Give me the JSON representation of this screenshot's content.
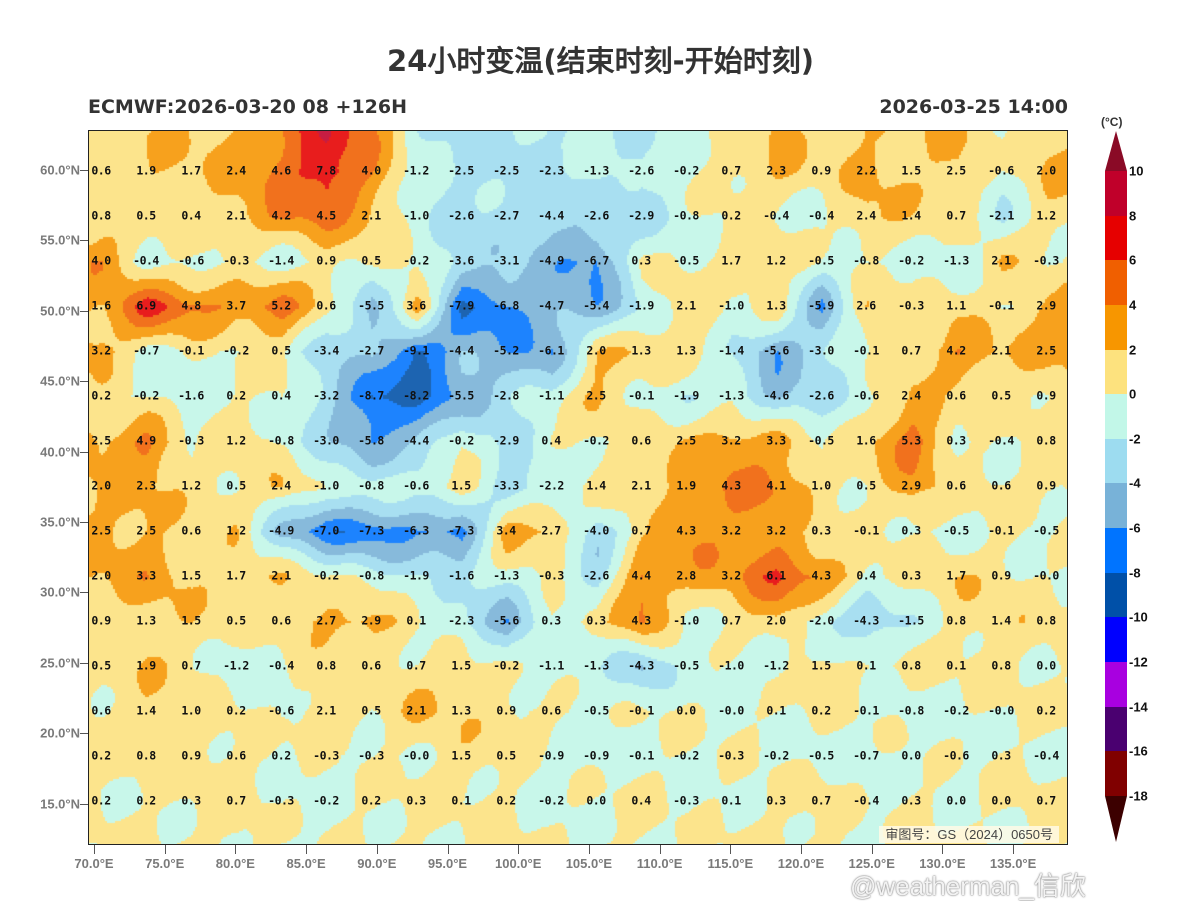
{
  "header": {
    "title": "24小时变温(结束时刻-开始时刻)",
    "model_run": "ECMWF:2026-03-20 08 +126H",
    "valid_time": "2026-03-25 14:00"
  },
  "colorbar": {
    "unit": "(°C)",
    "ticks": [
      "10",
      "8",
      "6",
      "4",
      "2",
      "0",
      "-2",
      "-4",
      "-6",
      "-8",
      "-10",
      "-12",
      "-14",
      "-16",
      "-18"
    ],
    "above_color": "#8a0a26",
    "below_color": "#3c0000",
    "colors": [
      "#c0002a",
      "#e60000",
      "#f05f00",
      "#f79600",
      "#fde27e",
      "#c2f7e8",
      "#9ddcf0",
      "#78b2d8",
      "#0074ff",
      "#0050a8",
      "#0000ff",
      "#a800e0",
      "#4a0070",
      "#800000"
    ]
  },
  "axes": {
    "lat_labels": [
      "60.0°N",
      "55.0°N",
      "50.0°N",
      "45.0°N",
      "40.0°N",
      "35.0°N",
      "30.0°N",
      "25.0°N",
      "20.0°N",
      "15.0°N"
    ],
    "lon_labels": [
      "70.0°E",
      "75.0°E",
      "80.0°E",
      "85.0°E",
      "90.0°E",
      "95.0°E",
      "100.0°E",
      "105.0°E",
      "110.0°E",
      "115.0°E",
      "120.0°E",
      "125.0°E",
      "130.0°E",
      "135.0°E"
    ]
  },
  "map_note": "审图号：GS（2024）0650号",
  "watermark": "@weatherman_信欣",
  "chart_data": {
    "type": "heatmap",
    "title": "24小时变温(结束时刻-开始时刻)",
    "units": "°C",
    "grid_values": [
      [
        "0.6",
        "1.9",
        "1.7",
        "2.4",
        "4.6",
        "7.8",
        "4.0",
        "-1.2",
        "-2.5",
        "-2.5",
        "-2.3",
        "-1.3",
        "-2.6",
        "-0.2",
        "0.7",
        "2.3",
        "0.9",
        "2.2",
        "1.5",
        "2.5",
        "-0.6",
        "2.0"
      ],
      [
        "0.8",
        "0.5",
        "0.4",
        "2.1",
        "4.2",
        "4.5",
        "2.1",
        "-1.0",
        "-2.6",
        "-2.7",
        "-4.4",
        "-2.6",
        "-2.9",
        "-0.8",
        "0.2",
        "-0.4",
        "-0.4",
        "2.4",
        "1.4",
        "0.7",
        "-2.1",
        "1.2"
      ],
      [
        "4.0",
        "-0.4",
        "-0.6",
        "-0.3",
        "-1.4",
        "0.9",
        "0.5",
        "-0.2",
        "-3.6",
        "-3.1",
        "-4.9",
        "-6.7",
        "0.3",
        "-0.5",
        "1.7",
        "1.2",
        "-0.5",
        "-0.8",
        "-0.2",
        "-1.3",
        "2.1",
        "-0.3"
      ],
      [
        "1.6",
        "6.9",
        "4.8",
        "3.7",
        "5.2",
        "0.6",
        "-5.5",
        "3.6",
        "-7.9",
        "-6.8",
        "-4.7",
        "-5.4",
        "-1.9",
        "2.1",
        "-1.0",
        "1.3",
        "-5.9",
        "2.6",
        "-0.3",
        "1.1",
        "-0.1",
        "2.9"
      ],
      [
        "3.2",
        "-0.7",
        "-0.1",
        "-0.2",
        "0.5",
        "-3.4",
        "-2.7",
        "-9.1",
        "-4.4",
        "-5.2",
        "-6.1",
        "2.0",
        "1.3",
        "1.3",
        "-1.4",
        "-5.6",
        "-3.0",
        "-0.1",
        "0.7",
        "4.2",
        "2.1",
        "2.5"
      ],
      [
        "0.2",
        "-0.2",
        "-1.6",
        "0.2",
        "0.4",
        "-3.2",
        "-8.7",
        "-8.2",
        "-5.5",
        "-2.8",
        "-1.1",
        "2.5",
        "-0.1",
        "-1.9",
        "-1.3",
        "-4.6",
        "-2.6",
        "-0.6",
        "2.4",
        "0.6",
        "0.5",
        "0.9"
      ],
      [
        "2.5",
        "4.9",
        "-0.3",
        "1.2",
        "-0.8",
        "-3.0",
        "-5.8",
        "-4.4",
        "-0.2",
        "-2.9",
        "0.4",
        "-0.2",
        "0.6",
        "2.5",
        "3.2",
        "3.3",
        "-0.5",
        "1.6",
        "5.3",
        "0.3",
        "-0.4",
        "0.8"
      ],
      [
        "2.0",
        "2.3",
        "1.2",
        "0.5",
        "2.4",
        "-1.0",
        "-0.8",
        "-0.6",
        "1.5",
        "-3.3",
        "-2.2",
        "1.4",
        "2.1",
        "1.9",
        "4.3",
        "4.1",
        "1.0",
        "0.5",
        "2.9",
        "0.6",
        "0.6",
        "0.9"
      ],
      [
        "2.5",
        "2.5",
        "0.6",
        "1.2",
        "-4.9",
        "-7.0",
        "-7.3",
        "-6.3",
        "-7.3",
        "3.4",
        "2.7",
        "-4.0",
        "0.7",
        "4.3",
        "3.2",
        "3.2",
        "0.3",
        "-0.1",
        "0.3",
        "-0.5",
        "-0.1",
        "-0.5"
      ],
      [
        "2.0",
        "3.3",
        "1.5",
        "1.7",
        "2.1",
        "-0.2",
        "-0.8",
        "-1.9",
        "-1.6",
        "-1.3",
        "-0.3",
        "-2.6",
        "4.4",
        "2.8",
        "3.2",
        "6.1",
        "4.3",
        "0.4",
        "0.3",
        "1.7",
        "0.9",
        "-0.0"
      ],
      [
        "0.9",
        "1.3",
        "1.5",
        "0.5",
        "0.6",
        "2.7",
        "2.9",
        "0.1",
        "-2.3",
        "-5.6",
        "0.3",
        "0.3",
        "4.3",
        "-1.0",
        "0.7",
        "2.0",
        "-2.0",
        "-4.3",
        "-1.5",
        "0.8",
        "1.4",
        "0.8"
      ],
      [
        "0.5",
        "1.9",
        "0.7",
        "-1.2",
        "-0.4",
        "0.8",
        "0.6",
        "0.7",
        "1.5",
        "-0.2",
        "-1.1",
        "-1.3",
        "-4.3",
        "-0.5",
        "-1.0",
        "-1.2",
        "1.5",
        "0.1",
        "0.8",
        "0.1",
        "0.8",
        "0.0"
      ],
      [
        "0.6",
        "1.4",
        "1.0",
        "0.2",
        "-0.6",
        "2.1",
        "0.5",
        "2.1",
        "1.3",
        "0.9",
        "0.6",
        "-0.5",
        "-0.1",
        "0.0",
        "-0.0",
        "0.1",
        "0.2",
        "-0.1",
        "-0.8",
        "-0.2",
        "-0.0",
        "0.2"
      ],
      [
        "0.2",
        "0.8",
        "0.9",
        "0.6",
        "0.2",
        "-0.3",
        "-0.3",
        "-0.0",
        "1.5",
        "0.5",
        "-0.9",
        "-0.9",
        "-0.1",
        "-0.2",
        "-0.3",
        "-0.2",
        "-0.5",
        "-0.7",
        "0.0",
        "-0.6",
        "0.3",
        "-0.4"
      ],
      [
        "0.2",
        "0.2",
        "0.3",
        "0.7",
        "-0.3",
        "-0.2",
        "0.2",
        "0.3",
        "0.1",
        "0.2",
        "-0.2",
        "0.0",
        "0.4",
        "-0.3",
        "0.1",
        "0.3",
        "0.7",
        "-0.4",
        "0.3",
        "0.0",
        "0.0",
        "0.7"
      ]
    ]
  }
}
